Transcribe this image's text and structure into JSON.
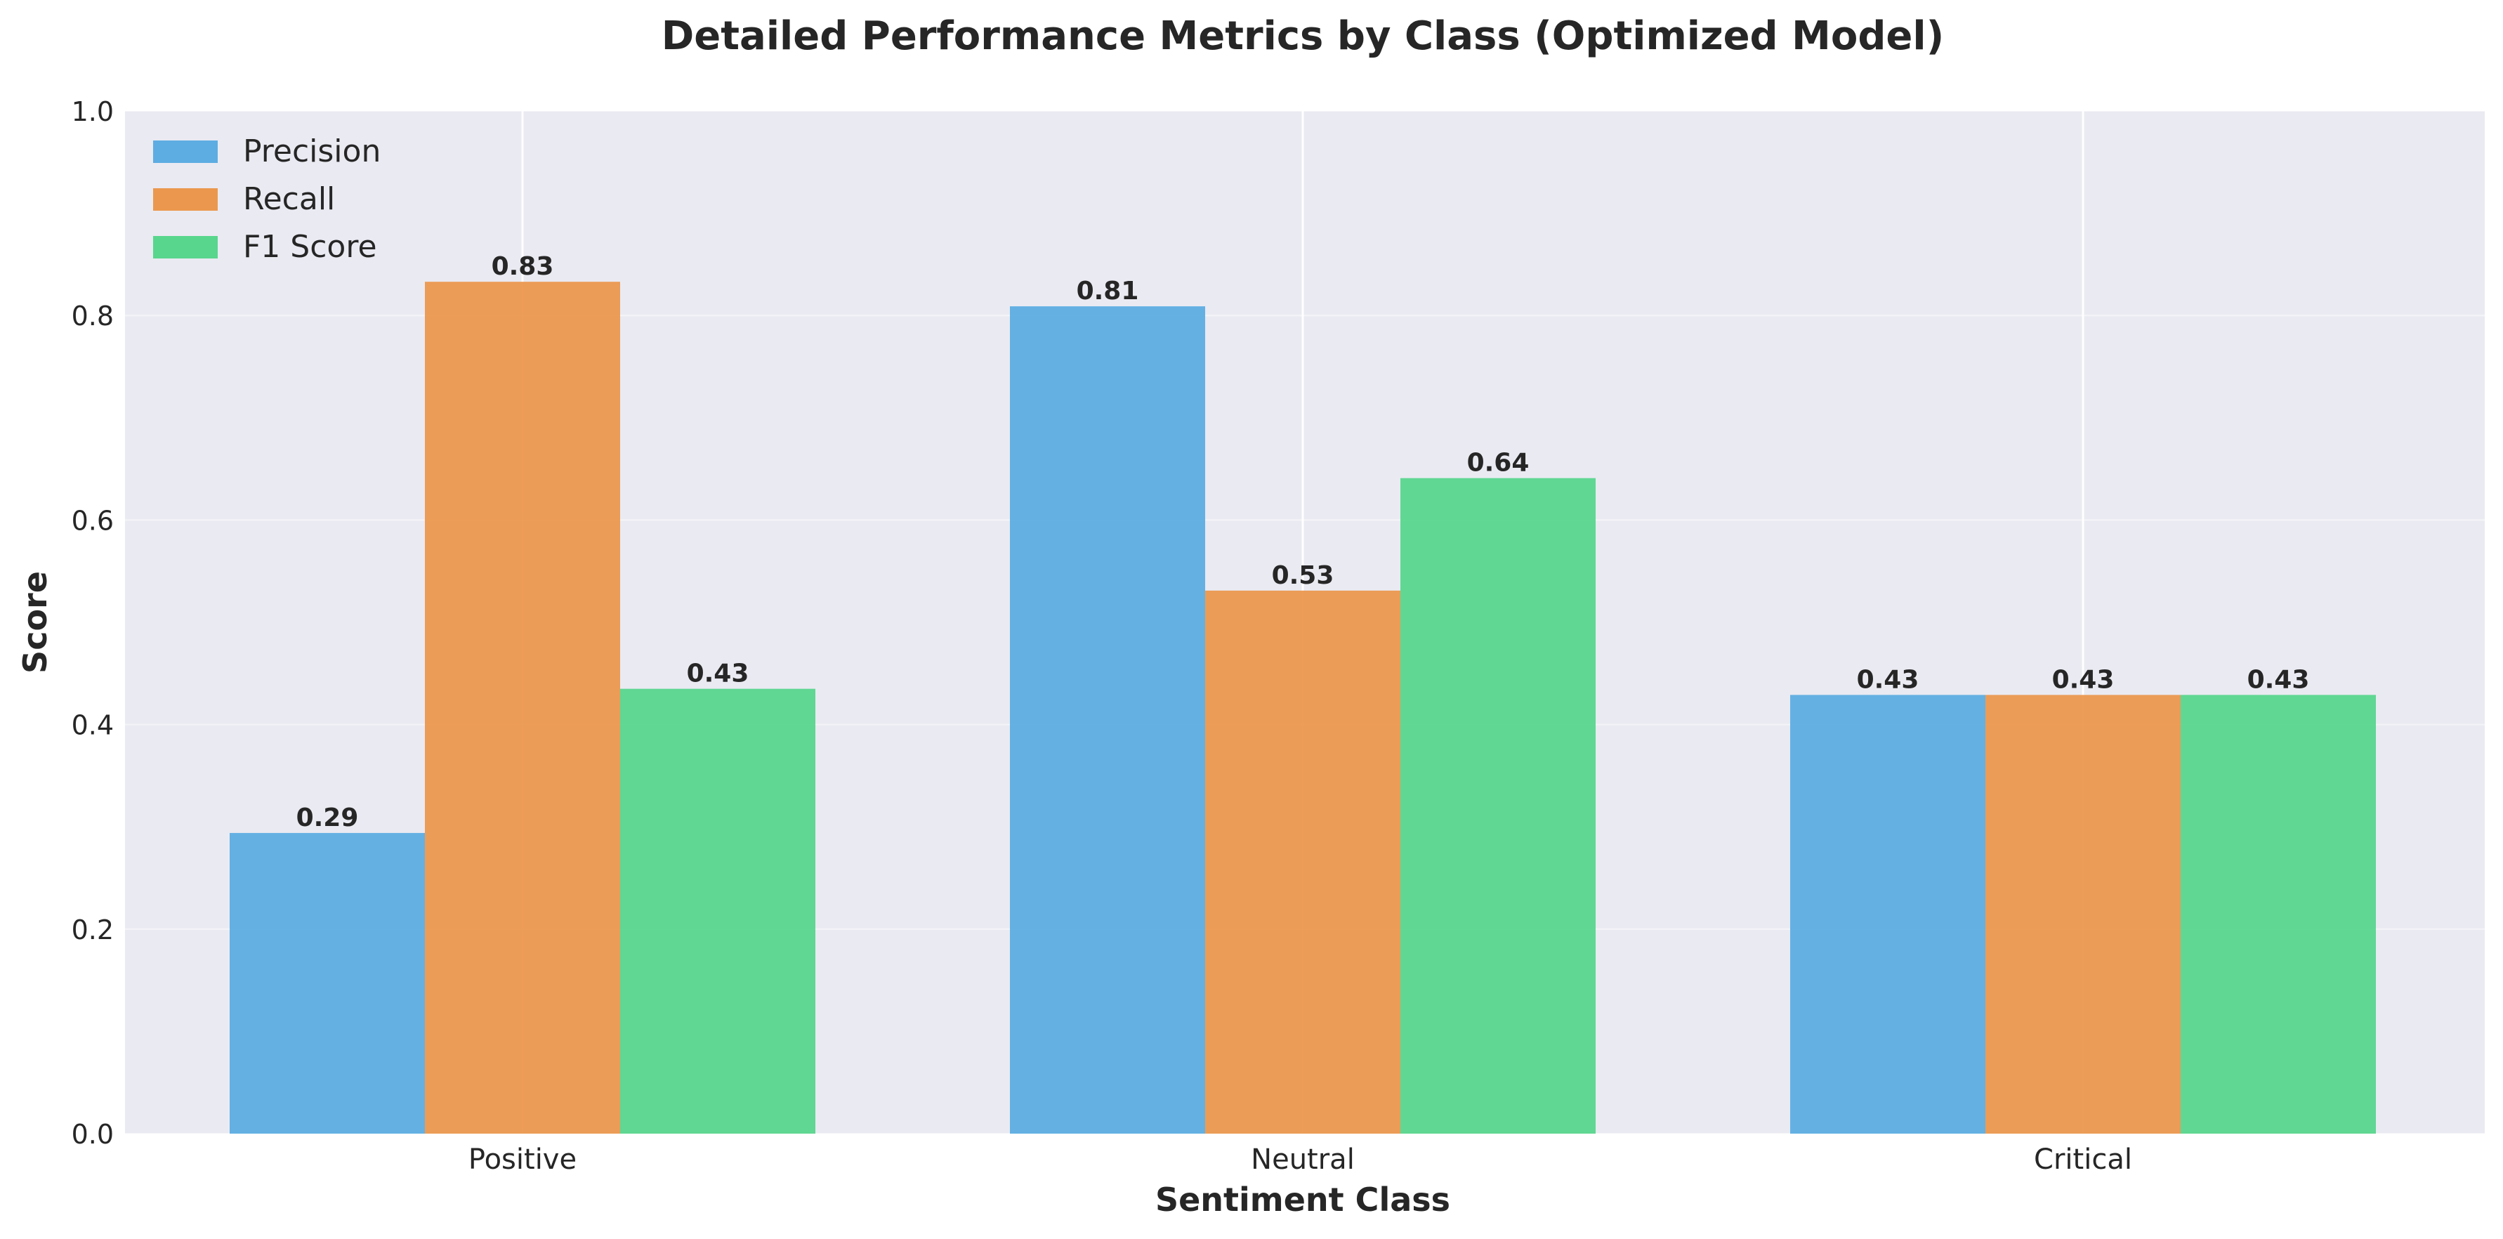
{
  "chart_data": {
    "type": "bar",
    "title": "Detailed Performance Metrics by Class (Optimized Model)",
    "xlabel": "Sentiment Class",
    "ylabel": "Score",
    "categories": [
      "Positive",
      "Neutral",
      "Critical"
    ],
    "series": [
      {
        "name": "Precision",
        "values": [
          0.294,
          0.809,
          0.429
        ],
        "labels": [
          "0.29",
          "0.81",
          "0.43"
        ],
        "color": "#5DADE2"
      },
      {
        "name": "Recall",
        "values": [
          0.833,
          0.531,
          0.429
        ],
        "labels": [
          "0.83",
          "0.53",
          "0.43"
        ],
        "color": "#EB984E"
      },
      {
        "name": "F1 Score",
        "values": [
          0.435,
          0.641,
          0.429
        ],
        "labels": [
          "0.43",
          "0.64",
          "0.43"
        ],
        "color": "#58D68D"
      }
    ],
    "ylim": [
      0,
      1.0
    ],
    "yticks": [
      "0.0",
      "0.2",
      "0.4",
      "0.6",
      "0.8",
      "1.0"
    ],
    "grid": true,
    "legend_position": "top-left",
    "background_color": "#EAEAF2"
  }
}
